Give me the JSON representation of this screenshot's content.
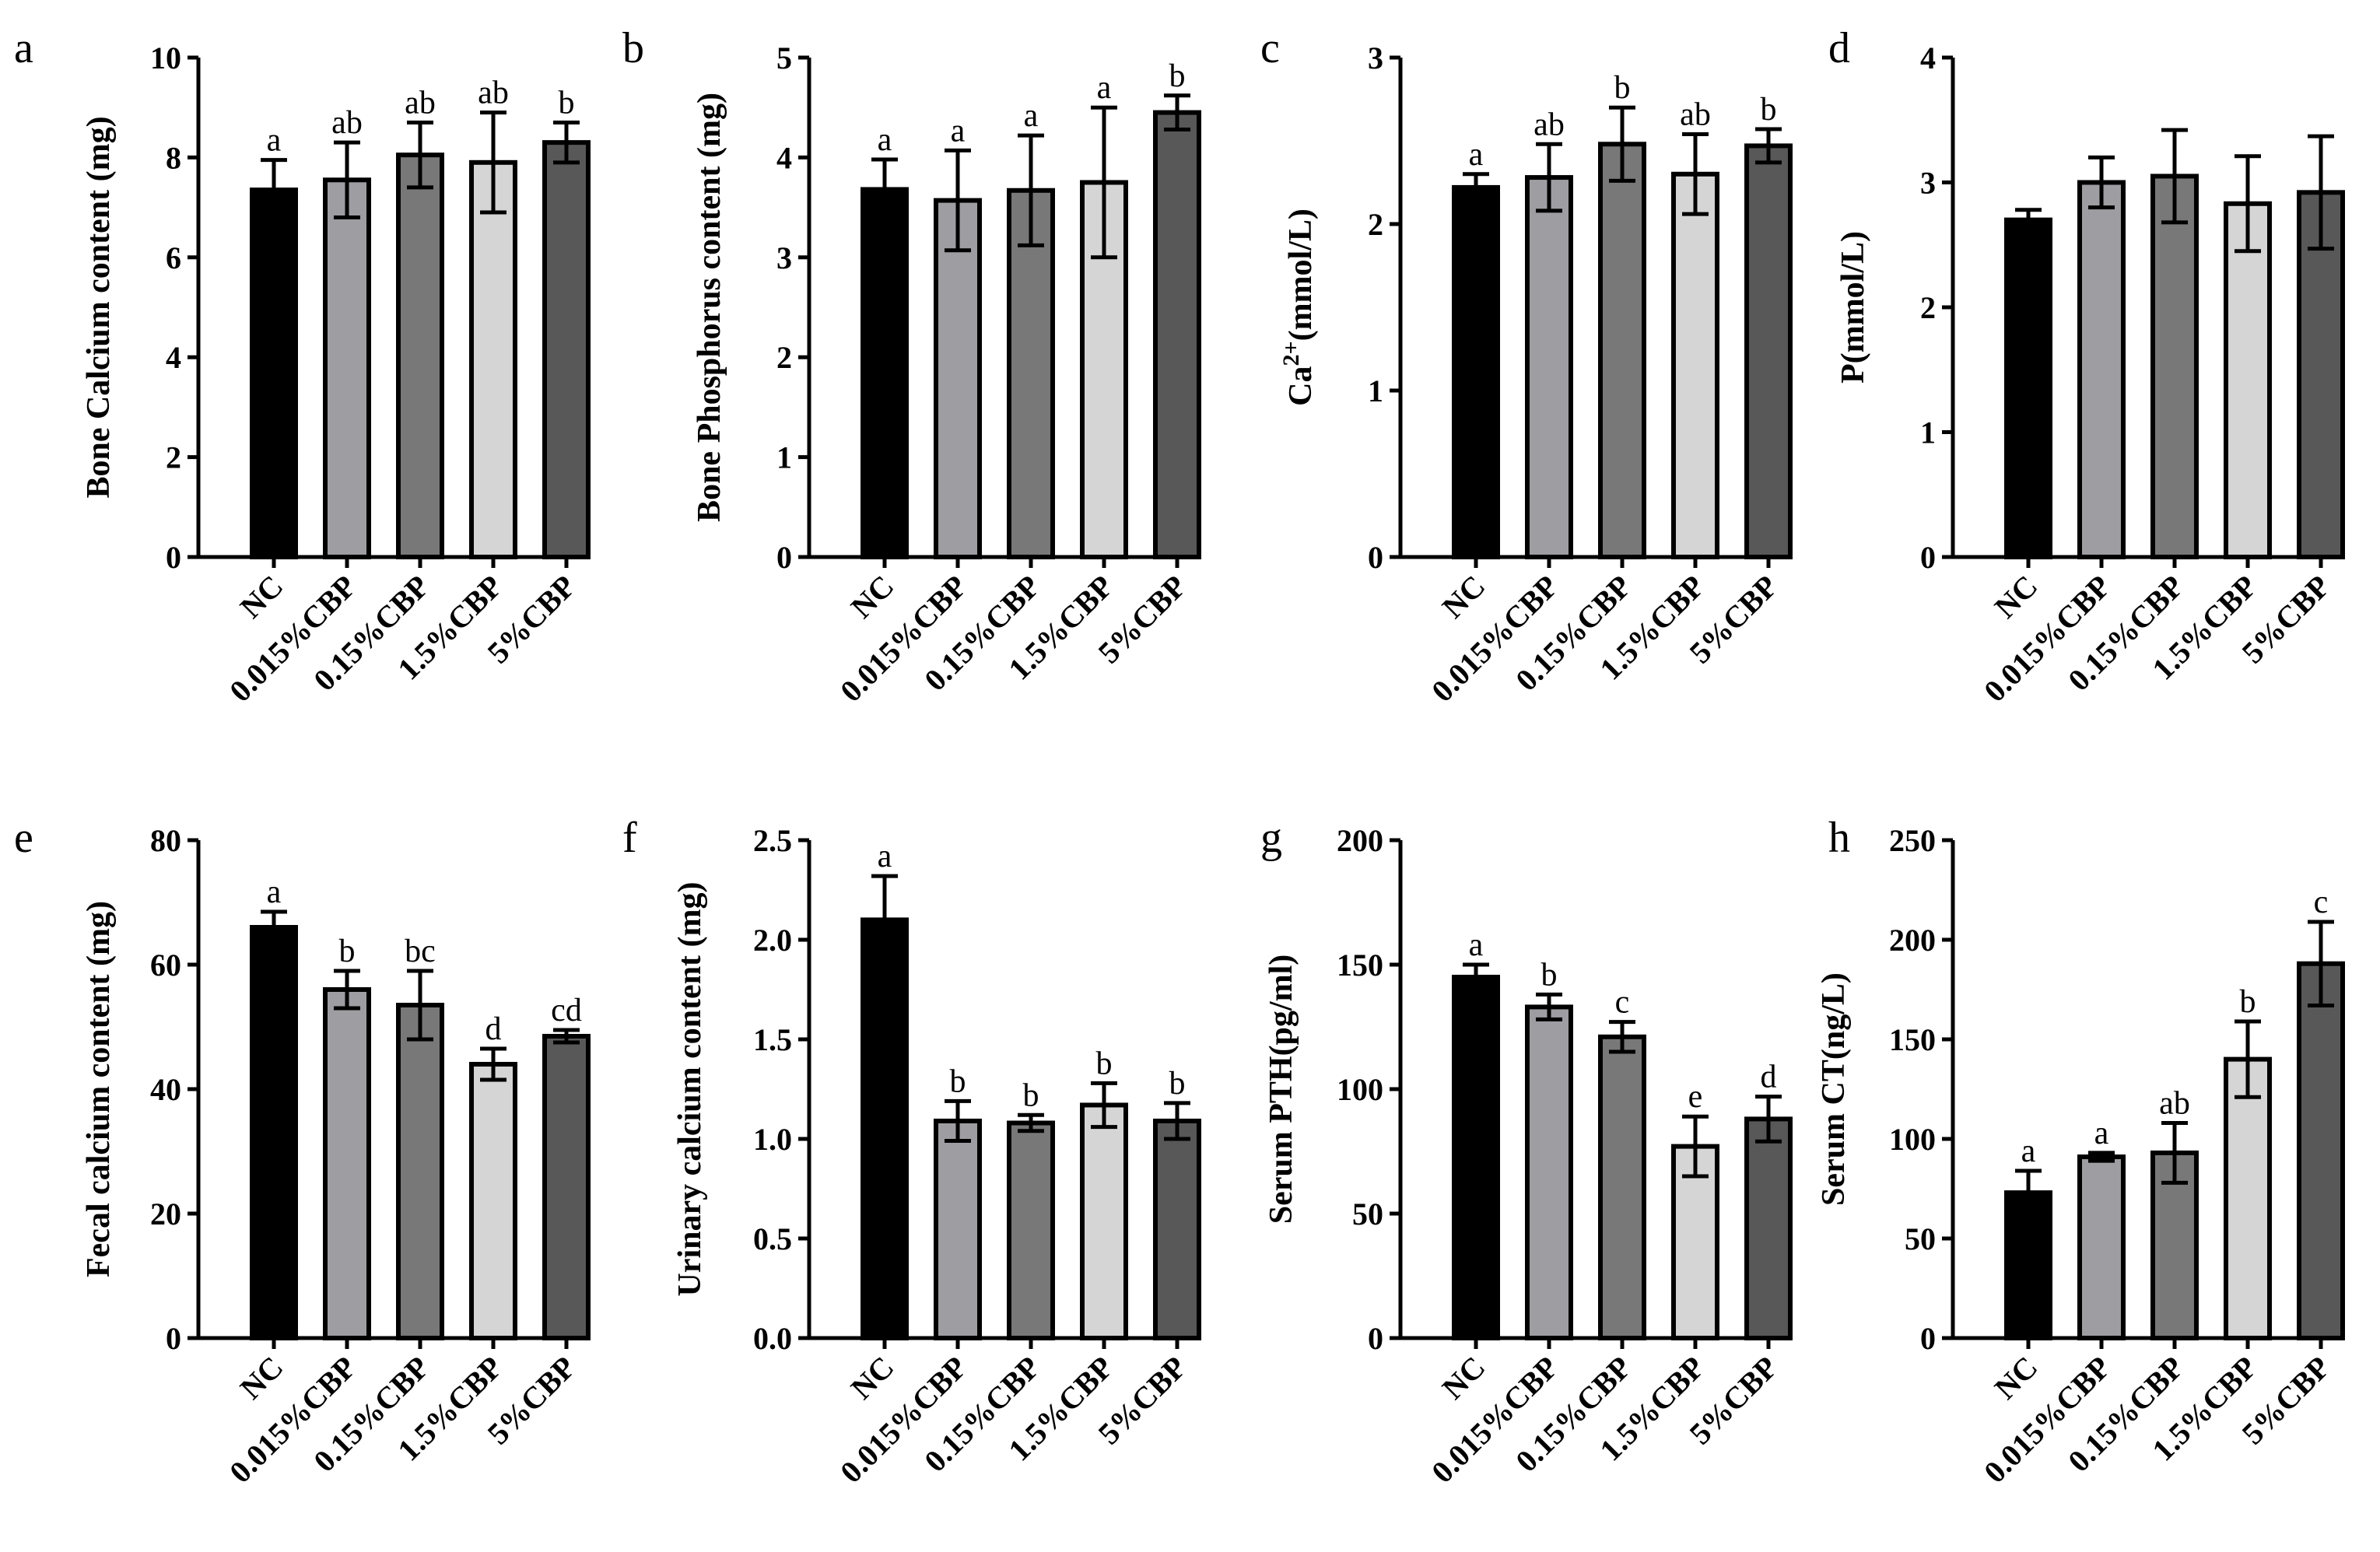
{
  "chart_data": [
    {
      "panel": "a",
      "type": "bar",
      "categories": [
        "NC",
        "0.015%CBP",
        "0.15%CBP",
        "1.5%CBP",
        "5%CBP"
      ],
      "values": [
        7.35,
        7.55,
        8.05,
        7.9,
        8.3
      ],
      "errors": [
        0.6,
        0.75,
        0.65,
        1.0,
        0.4
      ],
      "significance": [
        "a",
        "ab",
        "ab",
        "ab",
        "b"
      ],
      "ylabel": "Bone Calcium content (mg)",
      "ylim": [
        0,
        10
      ],
      "yticks": [
        0,
        2,
        4,
        6,
        8,
        10
      ],
      "tick_labels": [
        "0",
        "2",
        "4",
        "6",
        "8",
        "10"
      ]
    },
    {
      "panel": "b",
      "type": "bar",
      "categories": [
        "NC",
        "0.015%CBP",
        "0.15%CBP",
        "1.5%CBP",
        "5%CBP"
      ],
      "values": [
        3.68,
        3.57,
        3.67,
        3.75,
        4.45
      ],
      "errors": [
        0.3,
        0.5,
        0.55,
        0.75,
        0.17
      ],
      "significance": [
        "a",
        "a",
        "a",
        "a",
        "b"
      ],
      "ylabel": "Bone Phosphorus content (mg)",
      "ylim": [
        0,
        5
      ],
      "yticks": [
        0,
        1,
        2,
        3,
        4,
        5
      ],
      "tick_labels": [
        "0",
        "1",
        "2",
        "3",
        "4",
        "5"
      ]
    },
    {
      "panel": "c",
      "type": "bar",
      "categories": [
        "NC",
        "0.015%CBP",
        "0.15%CBP",
        "1.5%CBP",
        "5%CBP"
      ],
      "values": [
        2.22,
        2.28,
        2.48,
        2.3,
        2.47
      ],
      "errors": [
        0.08,
        0.2,
        0.22,
        0.24,
        0.1
      ],
      "significance": [
        "a",
        "ab",
        "b",
        "ab",
        "b"
      ],
      "ylabel_prefix": "Ca",
      "ylabel_sup": "2+",
      "ylabel_suffix": "(mmol/L)",
      "ylim": [
        0,
        3
      ],
      "yticks": [
        0,
        1,
        2,
        3
      ],
      "tick_labels": [
        "0",
        "1",
        "2",
        "3"
      ]
    },
    {
      "panel": "d",
      "type": "bar",
      "categories": [
        "NC",
        "0.015%CBP",
        "0.15%CBP",
        "1.5%CBP",
        "5%CBP"
      ],
      "values": [
        2.7,
        3.0,
        3.05,
        2.83,
        2.92
      ],
      "errors": [
        0.08,
        0.2,
        0.37,
        0.38,
        0.45
      ],
      "significance": [
        "",
        "",
        "",
        "",
        ""
      ],
      "ylabel": "P(mmol/L)",
      "ylim": [
        0,
        4
      ],
      "yticks": [
        0,
        1,
        2,
        3,
        4
      ],
      "tick_labels": [
        "0",
        "1",
        "2",
        "3",
        "4"
      ]
    },
    {
      "panel": "e",
      "type": "bar",
      "categories": [
        "NC",
        "0.015%CBP",
        "0.15%CBP",
        "1.5%CBP",
        "5%CBP"
      ],
      "values": [
        66,
        56,
        53.5,
        44,
        48.5
      ],
      "errors": [
        2.5,
        3,
        5.5,
        2.5,
        1
      ],
      "significance": [
        "a",
        "b",
        "bc",
        "d",
        "cd"
      ],
      "ylabel": "Fecal calcium content (mg)",
      "ylim": [
        0,
        80
      ],
      "yticks": [
        0,
        20,
        40,
        60,
        80
      ],
      "tick_labels": [
        "0",
        "20",
        "40",
        "60",
        "80"
      ]
    },
    {
      "panel": "f",
      "type": "bar",
      "categories": [
        "NC",
        "0.015%CBP",
        "0.15%CBP",
        "1.5%CBP",
        "5%CBP"
      ],
      "values": [
        2.1,
        1.09,
        1.08,
        1.17,
        1.09
      ],
      "errors": [
        0.22,
        0.1,
        0.04,
        0.11,
        0.09
      ],
      "significance": [
        "a",
        "b",
        "b",
        "b",
        "b"
      ],
      "ylabel": "Urinary calcium content (mg)",
      "ylim": [
        0,
        2.5
      ],
      "yticks": [
        0,
        0.5,
        1,
        1.5,
        2,
        2.5
      ],
      "tick_labels": [
        "0.0",
        "0.5",
        "1.0",
        "1.5",
        "2.0",
        "2.5"
      ]
    },
    {
      "panel": "g",
      "type": "bar",
      "categories": [
        "NC",
        "0.015%CBP",
        "0.15%CBP",
        "1.5%CBP",
        "5%CBP"
      ],
      "values": [
        145,
        133,
        121,
        77,
        88
      ],
      "errors": [
        5,
        5,
        6,
        12,
        9
      ],
      "significance": [
        "a",
        "b",
        "c",
        "e",
        "d"
      ],
      "ylabel": "Serum PTH(pg/ml)",
      "ylim": [
        0,
        200
      ],
      "yticks": [
        0,
        50,
        100,
        150,
        200
      ],
      "tick_labels": [
        "0",
        "50",
        "100",
        "150",
        "200"
      ]
    },
    {
      "panel": "h",
      "type": "bar",
      "categories": [
        "NC",
        "0.015%CBP",
        "0.15%CBP",
        "1.5%CBP",
        "5%CBP"
      ],
      "values": [
        73,
        91,
        93,
        140,
        188
      ],
      "errors": [
        11,
        2,
        15,
        19,
        21
      ],
      "significance": [
        "a",
        "a",
        "ab",
        "b",
        "c"
      ],
      "ylabel": "Serum CT(ng/L)",
      "ylim": [
        0,
        250
      ],
      "yticks": [
        0,
        50,
        100,
        150,
        200,
        250
      ],
      "tick_labels": [
        "0",
        "50",
        "100",
        "150",
        "200",
        "250"
      ]
    }
  ],
  "colors": {
    "bars": [
      "#000000",
      "#9d9da2",
      "#787878",
      "#d5d5d5",
      "#585858"
    ],
    "stroke": "#000000",
    "background": "#ffffff"
  }
}
